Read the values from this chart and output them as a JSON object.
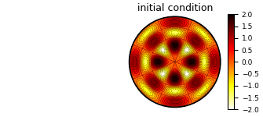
{
  "title": "initial condition",
  "cmap": "hot",
  "vmin": -2,
  "vmax": 2,
  "colorbar_ticks": [
    2,
    1.5,
    1,
    0.5,
    0,
    -0.5,
    -1,
    -1.5,
    -2
  ],
  "n_contour_levels": 20,
  "m_mode": 4,
  "n_radial": 3,
  "bg_color": "#f0f0f0",
  "title_fontsize": 9
}
